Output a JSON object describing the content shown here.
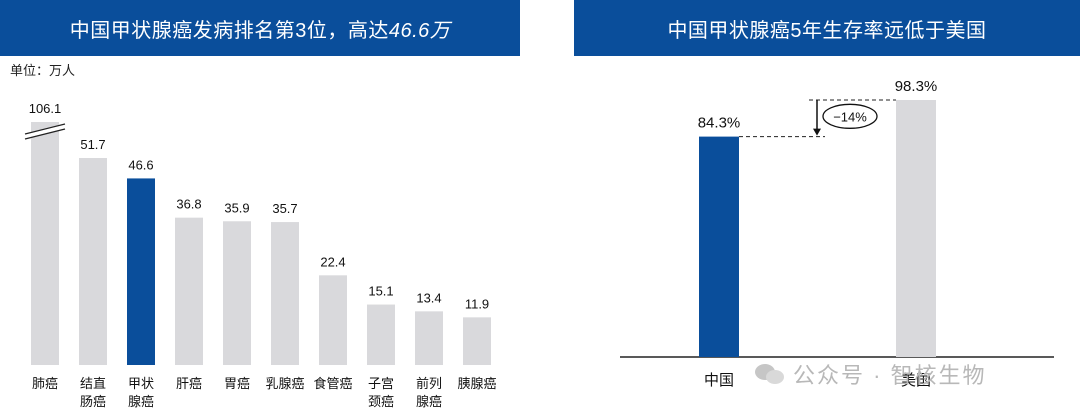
{
  "left_panel": {
    "title_prefix": "中国甲状腺癌发病排名第3位，高达",
    "title_number": "46.6万",
    "unit_label": "单位：万人"
  },
  "right_panel": {
    "title": "中国甲状腺癌5年生存率远低于美国",
    "annotation": "−14%"
  },
  "watermark": {
    "text": "公众号 · 智核生物",
    "icon": "wechat-icon"
  },
  "colors": {
    "title_bg": "#0a4e9b",
    "highlight": "#0a4e9b",
    "bar": "#d9d9dc"
  },
  "chart_data": [
    {
      "type": "bar",
      "categories": [
        [
          "肺癌"
        ],
        [
          "结直",
          "肠癌"
        ],
        [
          "甲状",
          "腺癌"
        ],
        [
          "肝癌"
        ],
        [
          "胃癌"
        ],
        [
          "乳腺癌"
        ],
        [
          "食管癌"
        ],
        [
          "子宫",
          "颈癌"
        ],
        [
          "前列",
          "腺癌"
        ],
        [
          "胰腺癌"
        ]
      ],
      "values": [
        106.1,
        51.7,
        46.6,
        36.8,
        35.9,
        35.7,
        22.4,
        15.1,
        13.4,
        11.9
      ],
      "value_labels": [
        "106.1",
        "51.7",
        "46.6",
        "36.8",
        "35.9",
        "35.7",
        "22.4",
        "15.1",
        "13.4",
        "11.9"
      ],
      "highlight_index": 2,
      "axis_break_index": 0,
      "ylim": [
        0,
        60
      ],
      "title": "中国甲状腺癌发病排名第3位，高达46.6万",
      "ylabel": "单位：万人"
    },
    {
      "type": "bar",
      "categories": [
        "中国",
        "美国"
      ],
      "values": [
        84.3,
        98.3
      ],
      "value_labels": [
        "84.3%",
        "98.3%"
      ],
      "highlight_index": 0,
      "difference_label": "−14%",
      "ylim": [
        0,
        100
      ],
      "title": "中国甲状腺癌5年生存率远低于美国"
    }
  ]
}
